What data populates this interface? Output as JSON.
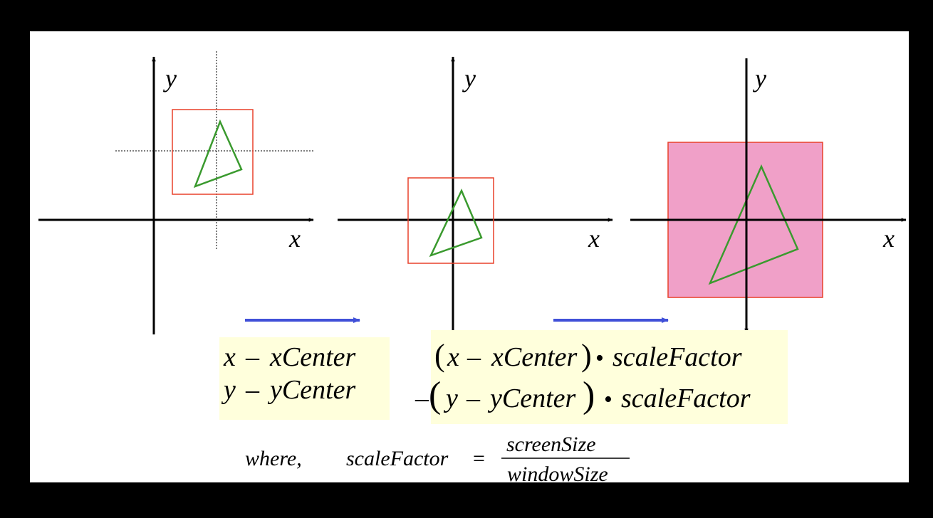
{
  "colors": {
    "background_frame": "#000000",
    "slide": "#ffffff",
    "axis": "#000000",
    "window_rect": "#e8402a",
    "triangle": "#3a9a2e",
    "filled_rect": "#f0a0c8",
    "arrow": "#4050d8",
    "highlight": "#ffffdc"
  },
  "diagram": {
    "panel1": {
      "x_label": "x",
      "y_label": "y"
    },
    "panel2": {
      "x_label": "x",
      "y_label": "y"
    },
    "panel3": {
      "x_label": "x",
      "y_label": "y"
    }
  },
  "formulas": {
    "step1": {
      "line1_var": "x",
      "line1_op": "–",
      "line1_term": "xCenter",
      "line2_var": "y",
      "line2_op": "–",
      "line2_term": "yCenter"
    },
    "step2": {
      "line1_open": "(",
      "line1_var": "x",
      "line1_op": "–",
      "line1_term": "xCenter",
      "line1_close": ")",
      "line1_dot": "•",
      "line1_factor": "scaleFactor",
      "line2_neg": "–",
      "line2_open": "(",
      "line2_var": "y",
      "line2_op": "–",
      "line2_term": "yCenter",
      "line2_close": ")",
      "line2_dot": "•",
      "line2_factor": "scaleFactor"
    },
    "where": {
      "prefix": "where,",
      "lhs": "scaleFactor",
      "equals": "=",
      "numerator": "screenSize",
      "denominator": "windowSize"
    }
  },
  "icons": [
    "arrow-right-icon",
    "arrow-right-icon"
  ]
}
